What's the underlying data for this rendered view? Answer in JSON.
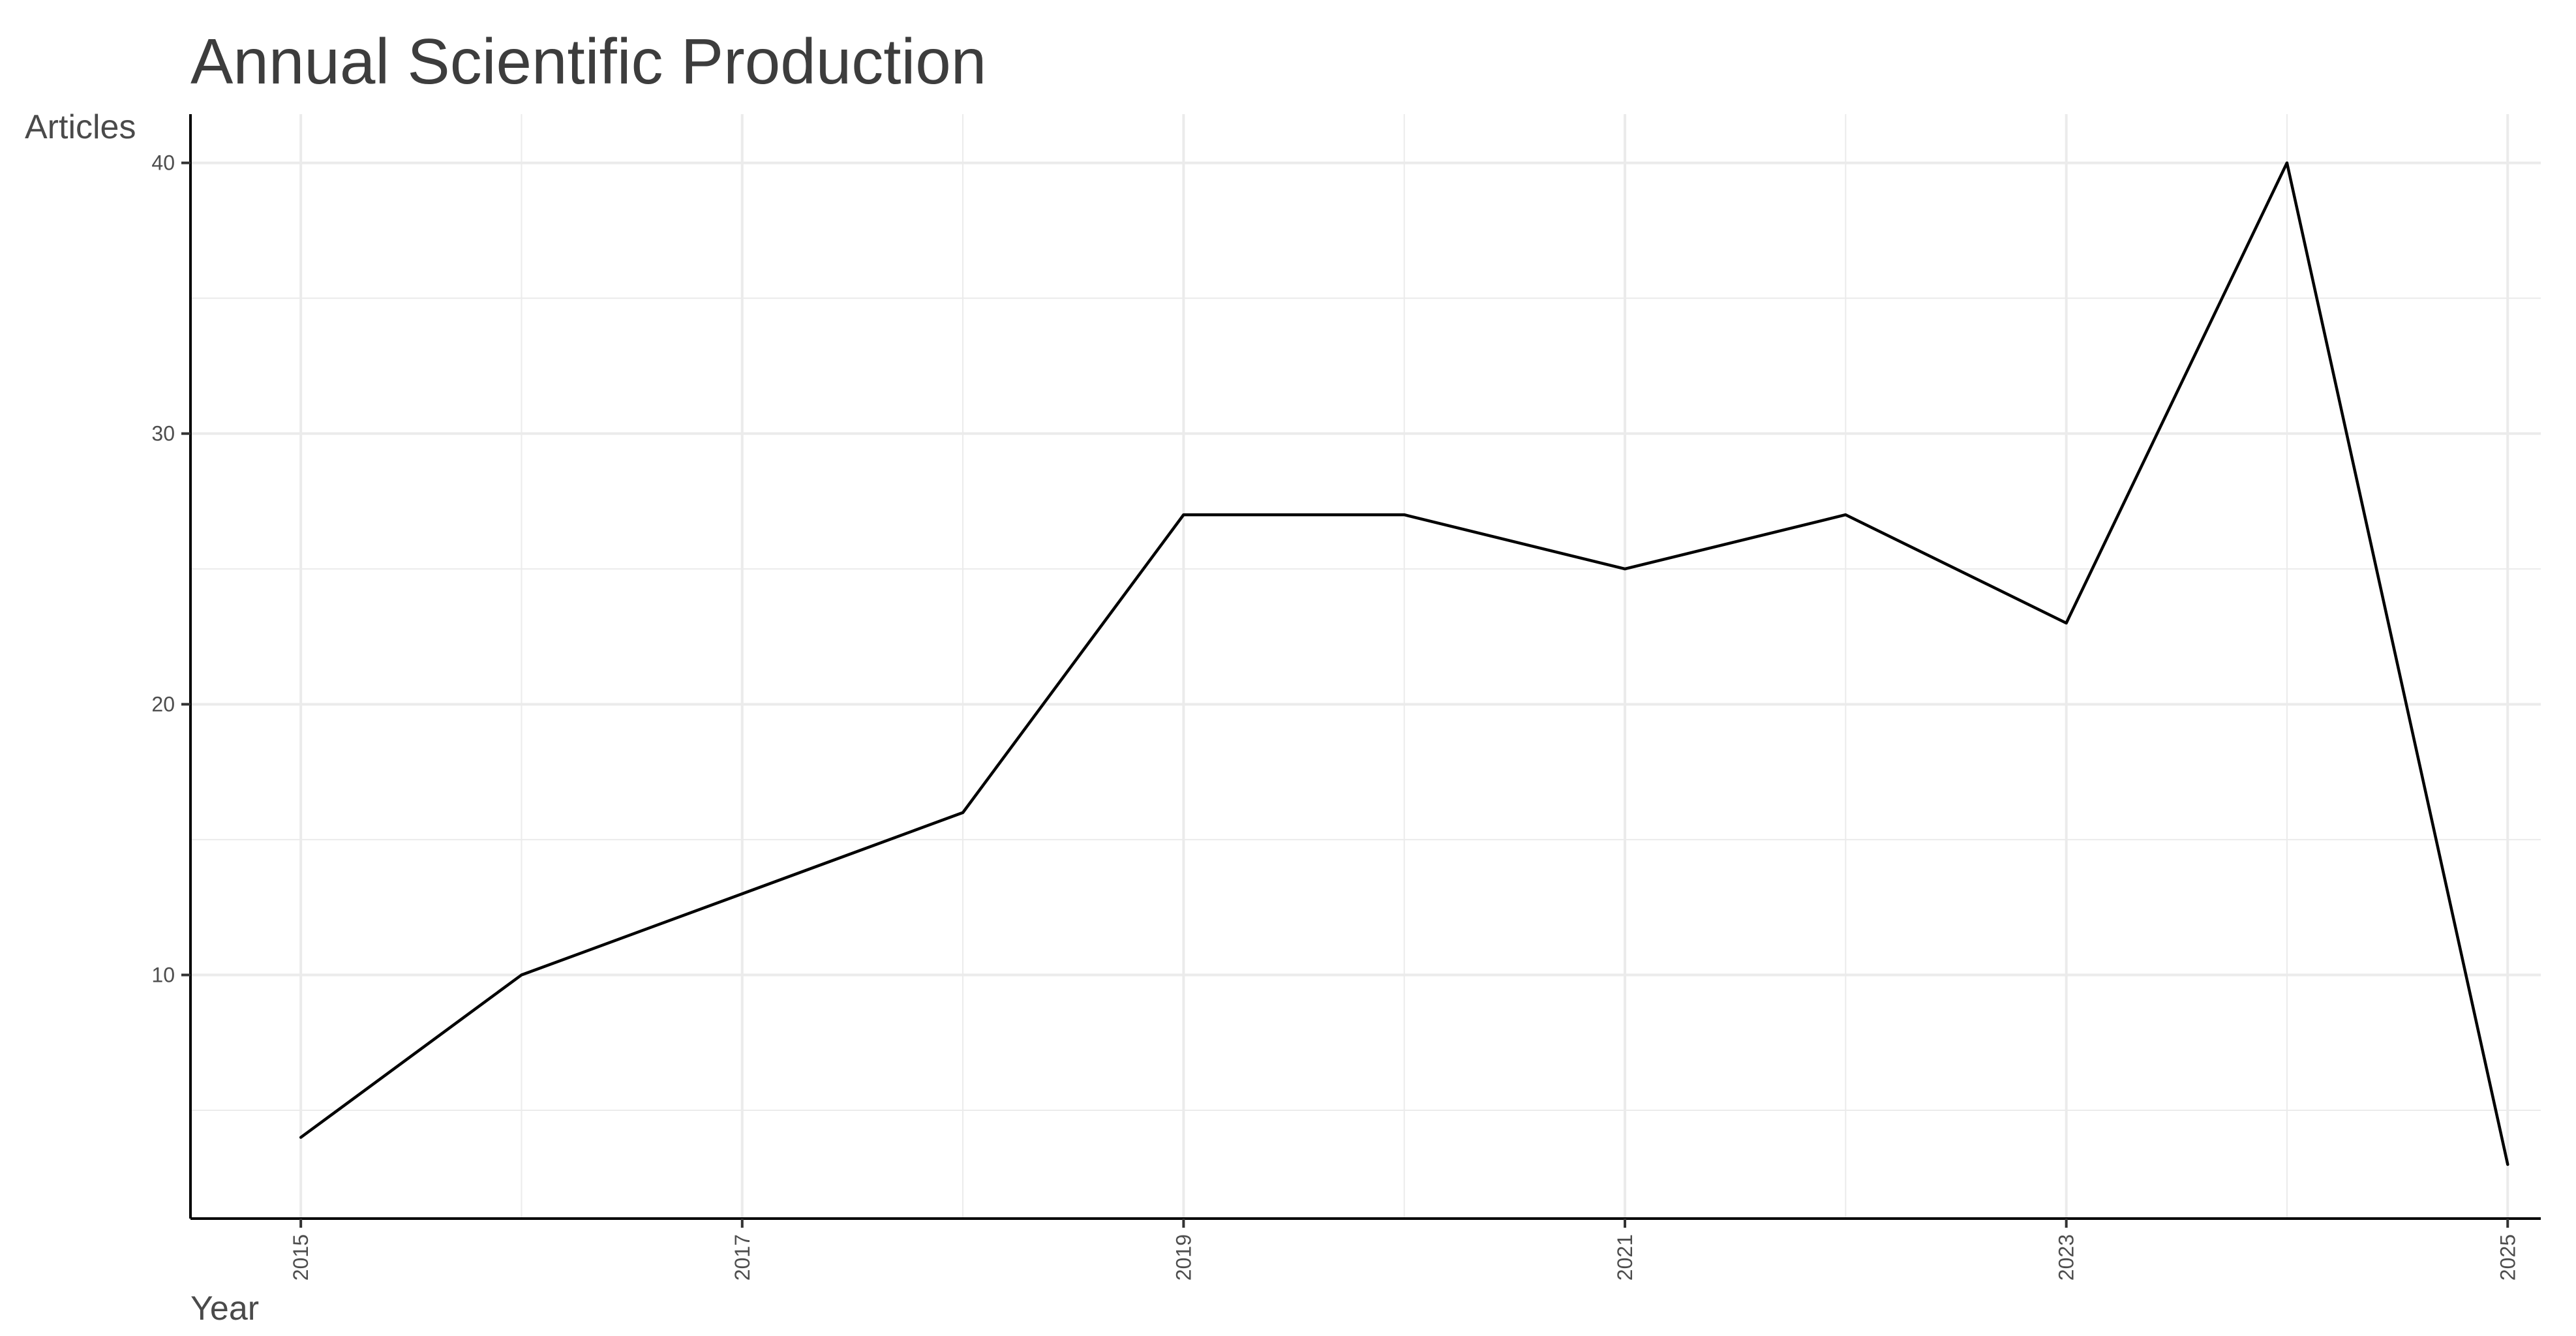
{
  "chart_data": {
    "type": "line",
    "title": "Annual Scientific Production",
    "xlabel": "Year",
    "ylabel": "Articles",
    "x": [
      2015,
      2016,
      2017,
      2018,
      2019,
      2020,
      2021,
      2022,
      2023,
      2024,
      2025
    ],
    "series": [
      {
        "values": [
          4,
          10,
          13,
          16,
          27,
          27,
          25,
          27,
          23,
          40,
          3
        ]
      }
    ],
    "xlim": [
      2014.5,
      2025.15
    ],
    "ylim": [
      1,
      41.8
    ],
    "x_ticks": [
      "2015",
      "2017",
      "2019",
      "2021",
      "2023",
      "2025"
    ],
    "y_ticks": [
      "10",
      "20",
      "30",
      "40"
    ],
    "grid": true,
    "line_color": "#000000",
    "grid_color": "#ebebeb"
  }
}
